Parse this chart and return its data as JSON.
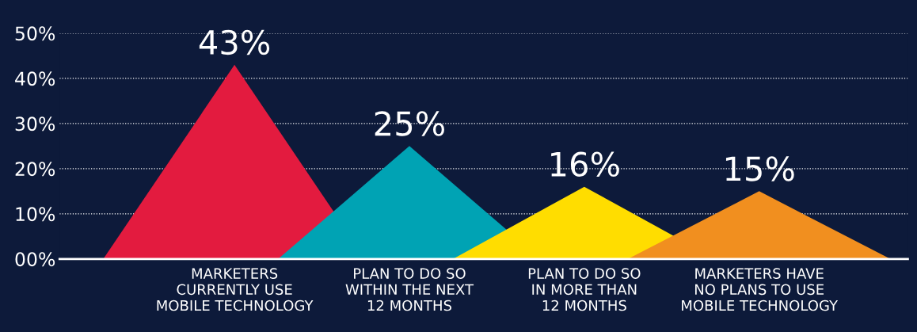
{
  "chart_data": {
    "type": "area",
    "categories": [
      null,
      null,
      null,
      "MARKETERS\nCURRENTLY USE\nMOBILE TECHNOLOGY",
      null,
      null,
      null,
      "PLAN TO DO SO\nWITHIN THE NEXT\n12 MONTHS",
      null,
      null,
      null,
      "PLAN TO DO SO\nIN MORE THAN\n12 MONTHS",
      null,
      null,
      null,
      "MARKETERS HAVE\nNO PLANS TO USE\nMOBILE TECHNOLOGY",
      null,
      null,
      null
    ],
    "series": [
      {
        "color": "#e31b3f",
        "values": [
          0,
          null,
          null,
          43,
          null,
          null,
          0,
          null,
          null,
          null,
          null,
          null,
          null,
          null,
          null,
          null,
          null,
          null,
          null
        ],
        "value_labels": [
          null,
          null,
          null,
          "43%",
          null,
          null,
          null,
          null,
          null,
          null,
          null,
          null,
          null,
          null,
          null,
          null,
          null,
          null,
          null
        ]
      },
      {
        "color": "#00a3b4",
        "values": [
          null,
          null,
          null,
          null,
          0,
          null,
          null,
          25,
          null,
          null,
          0,
          null,
          null,
          null,
          null,
          null,
          null,
          null,
          null
        ],
        "value_labels": [
          null,
          null,
          null,
          null,
          null,
          null,
          null,
          "25%",
          null,
          null,
          null,
          null,
          null,
          null,
          null,
          null,
          null,
          null,
          null
        ]
      },
      {
        "color": "#ffdd00",
        "values": [
          null,
          null,
          null,
          null,
          null,
          null,
          null,
          null,
          0,
          null,
          null,
          16,
          null,
          null,
          0,
          null,
          null,
          null,
          null
        ],
        "value_labels": [
          null,
          null,
          null,
          null,
          null,
          null,
          null,
          null,
          null,
          null,
          null,
          "16%",
          null,
          null,
          null,
          null,
          null,
          null,
          null
        ]
      },
      {
        "color": "#f18f1f",
        "values": [
          null,
          null,
          null,
          null,
          null,
          null,
          null,
          null,
          null,
          null,
          null,
          null,
          0,
          null,
          null,
          15,
          null,
          null,
          0
        ],
        "value_labels": [
          null,
          null,
          null,
          null,
          null,
          null,
          null,
          null,
          null,
          null,
          null,
          null,
          null,
          null,
          null,
          "15%",
          null,
          null,
          null
        ]
      }
    ],
    "ylim": [
      0,
      50
    ],
    "yticks": [
      {
        "value": 0,
        "label": "00%"
      },
      {
        "value": 10,
        "label": "10%"
      },
      {
        "value": 20,
        "label": "20%"
      },
      {
        "value": 30,
        "label": "30%"
      },
      {
        "value": 40,
        "label": "40%"
      },
      {
        "value": 50,
        "label": "50%"
      }
    ],
    "grid": "y"
  }
}
